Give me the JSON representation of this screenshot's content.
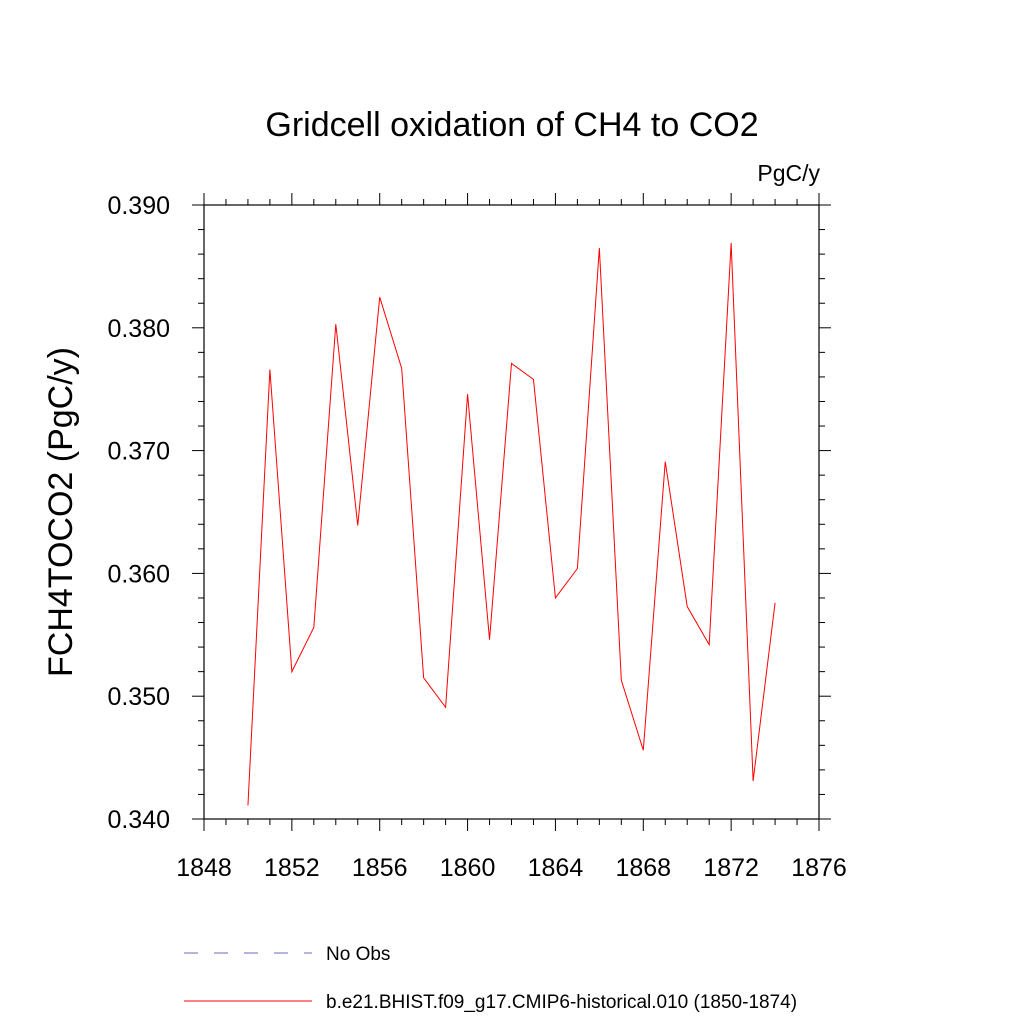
{
  "chart_data": {
    "type": "line",
    "title": "Gridcell oxidation of CH4 to CO2",
    "units": "PgC/y",
    "xlabel": "",
    "ylabel": "FCH4TOCO2  (PgC/y)",
    "xlim": [
      1848,
      1876
    ],
    "ylim": [
      0.34,
      0.39
    ],
    "xticks": [
      "1848",
      "1852",
      "1856",
      "1860",
      "1864",
      "1868",
      "1872",
      "1876"
    ],
    "yticks": [
      "0.340",
      "0.350",
      "0.360",
      "0.370",
      "0.380",
      "0.390"
    ],
    "grid": false,
    "legend_position": "bottom",
    "series": [
      {
        "name": "No Obs",
        "color": "#6a6ab8",
        "style": "dashed",
        "x": [],
        "values": []
      },
      {
        "name": "b.e21.BHIST.f09_g17.CMIP6-historical.010 (1850-1874)",
        "color": "#ff0000",
        "style": "solid",
        "x": [
          1850,
          1851,
          1852,
          1853,
          1854,
          1855,
          1856,
          1857,
          1858,
          1859,
          1860,
          1861,
          1862,
          1863,
          1864,
          1865,
          1866,
          1867,
          1868,
          1869,
          1870,
          1871,
          1872,
          1873,
          1874
        ],
        "values": [
          0.3411,
          0.3766,
          0.352,
          0.3556,
          0.3803,
          0.3639,
          0.3825,
          0.3767,
          0.3515,
          0.3491,
          0.3746,
          0.3546,
          0.3771,
          0.3758,
          0.358,
          0.3604,
          0.3865,
          0.3513,
          0.3456,
          0.3691,
          0.3573,
          0.3542,
          0.3869,
          0.3431,
          0.3576
        ]
      }
    ]
  }
}
